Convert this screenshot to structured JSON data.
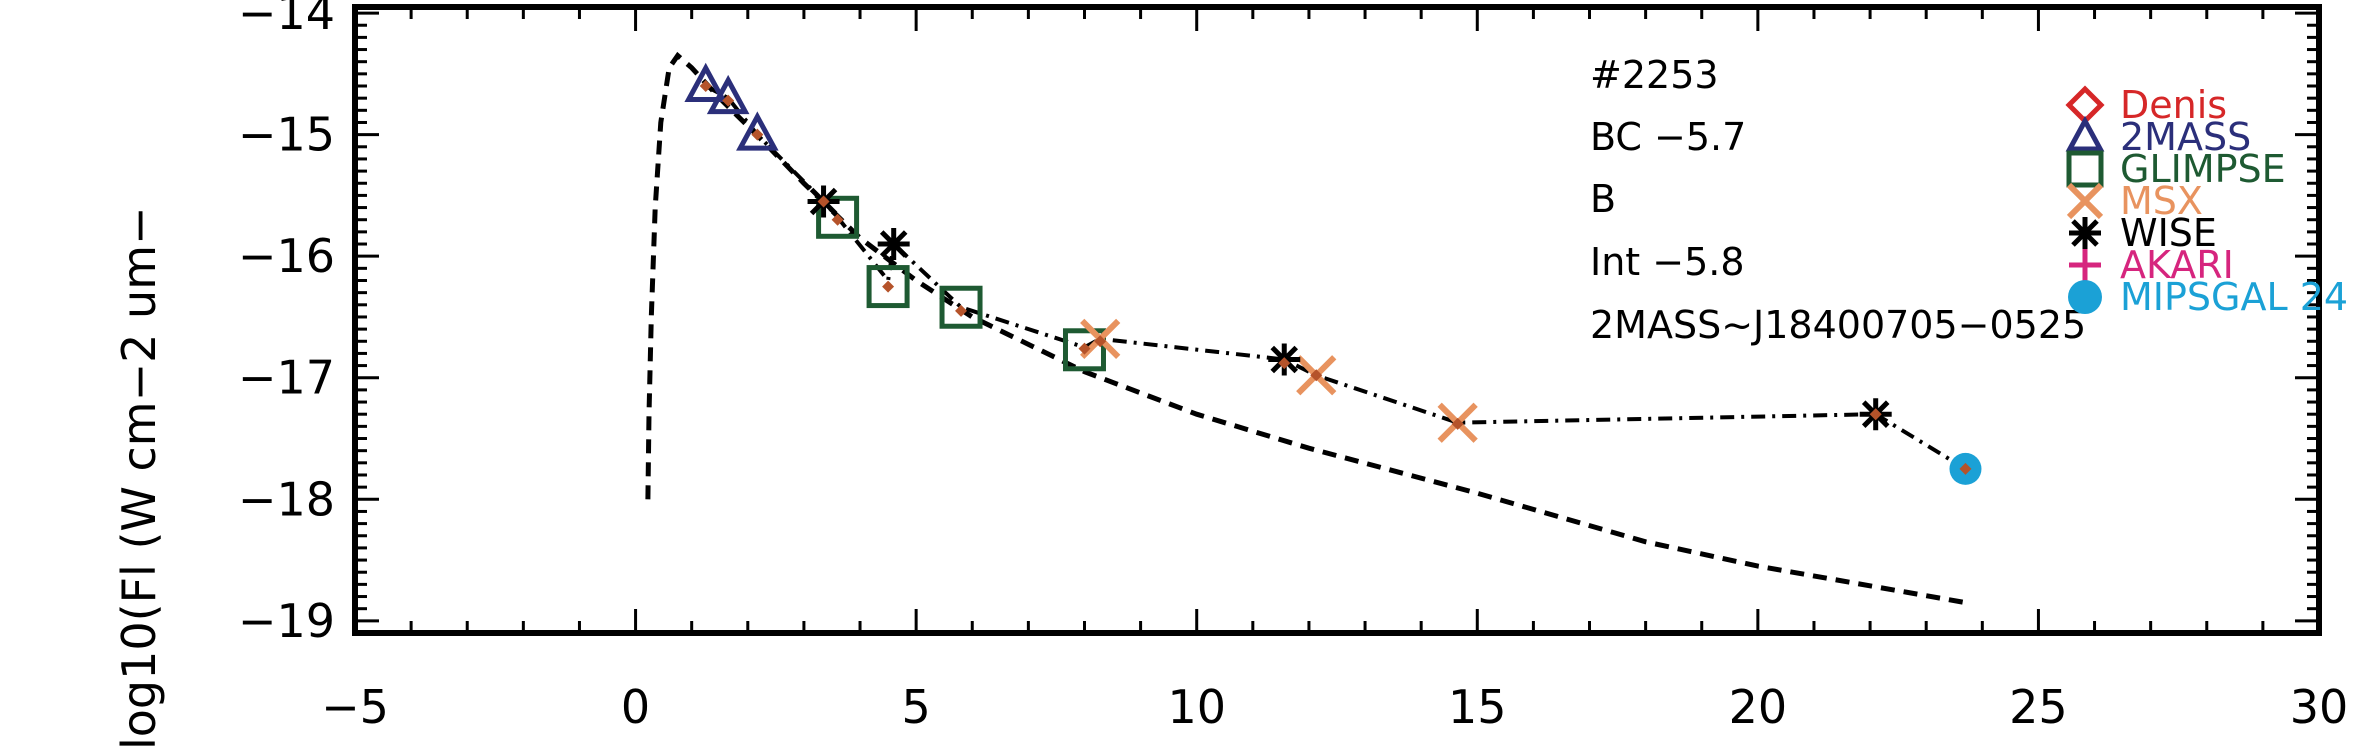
{
  "chart_data": {
    "type": "scatter",
    "title": "",
    "xlabel": "",
    "ylabel": "log10(Fl (W cm−2 um−",
    "xlim": [
      -5,
      30
    ],
    "ylim": [
      -19.1,
      -13.95
    ],
    "x_ticks": [
      -5,
      0,
      5,
      10,
      15,
      20,
      25,
      30
    ],
    "x_tick_labels": [
      "−5",
      "0",
      "5",
      "10",
      "15",
      "20",
      "25",
      "30"
    ],
    "y_ticks": [
      -14,
      -15,
      -16,
      -17,
      -18,
      -19
    ],
    "y_tick_labels": [
      "−14",
      "−15",
      "−16",
      "−17",
      "−18",
      "−19"
    ],
    "annotations": [
      "#2253",
      "BC  −5.7",
      "B",
      "Int  −5.8",
      "2MASS~J18400705−0525"
    ],
    "legend_position": "right",
    "legend": [
      {
        "name": "Denis",
        "marker": "diamond",
        "color": "#d62728"
      },
      {
        "name": "2MASS",
        "marker": "triangle",
        "color": "#2b2f7a"
      },
      {
        "name": "GLIMPSE",
        "marker": "square",
        "color": "#1e5a32"
      },
      {
        "name": "MSX",
        "marker": "x",
        "color": "#e8935f"
      },
      {
        "name": "WISE",
        "marker": "asterisk",
        "color": "#000000"
      },
      {
        "name": "AKARI",
        "marker": "plus",
        "color": "#d6257e"
      },
      {
        "name": "MIPSGAL 24",
        "marker": "circle",
        "color": "#1ba1d6"
      }
    ],
    "series": [
      {
        "survey": "2MASS",
        "marker": "triangle",
        "color": "#2b2f7a",
        "points": [
          [
            1.25,
            -14.6
          ],
          [
            1.65,
            -14.7
          ],
          [
            2.17,
            -15.0
          ]
        ]
      },
      {
        "survey": "GLIMPSE",
        "marker": "square",
        "color": "#1e5a32",
        "points": [
          [
            3.6,
            -15.68
          ],
          [
            4.5,
            -16.25
          ],
          [
            5.8,
            -16.42
          ],
          [
            8.0,
            -16.77
          ]
        ]
      },
      {
        "survey": "MSX",
        "marker": "x",
        "color": "#e8935f",
        "points": [
          [
            8.28,
            -16.68
          ],
          [
            12.13,
            -16.98
          ],
          [
            14.65,
            -17.37
          ]
        ]
      },
      {
        "survey": "WISE",
        "marker": "asterisk",
        "color": "#000000",
        "points": [
          [
            3.35,
            -15.55
          ],
          [
            4.6,
            -15.9
          ],
          [
            11.56,
            -16.85
          ],
          [
            22.1,
            -17.3
          ]
        ]
      },
      {
        "survey": "MIPSGAL 24",
        "marker": "circle",
        "color": "#1ba1d6",
        "points": [
          [
            23.7,
            -17.75
          ]
        ]
      }
    ],
    "model_points": {
      "marker": "diamond",
      "color": "#b5532a",
      "points": [
        [
          1.25,
          -14.6
        ],
        [
          1.65,
          -14.72
        ],
        [
          2.17,
          -15.0
        ],
        [
          3.35,
          -15.55
        ],
        [
          3.6,
          -15.7
        ],
        [
          4.5,
          -16.25
        ],
        [
          5.8,
          -16.45
        ],
        [
          8.0,
          -16.76
        ],
        [
          8.28,
          -16.7
        ],
        [
          11.56,
          -16.88
        ],
        [
          12.13,
          -16.98
        ],
        [
          14.65,
          -17.38
        ],
        [
          22.1,
          -17.3
        ],
        [
          23.7,
          -17.75
        ]
      ]
    },
    "sed_curve": {
      "style": "dash-dot",
      "points": [
        [
          1.25,
          -14.6
        ],
        [
          1.65,
          -14.7
        ],
        [
          2.17,
          -15.0
        ],
        [
          3.35,
          -15.55
        ],
        [
          3.6,
          -15.68
        ],
        [
          4.5,
          -16.2
        ],
        [
          4.6,
          -15.9
        ],
        [
          5.8,
          -16.42
        ],
        [
          8.0,
          -16.75
        ],
        [
          8.28,
          -16.68
        ],
        [
          11.56,
          -16.85
        ],
        [
          12.13,
          -16.98
        ],
        [
          14.65,
          -17.37
        ],
        [
          22.1,
          -17.3
        ],
        [
          23.7,
          -17.75
        ]
      ]
    },
    "model_curve": {
      "style": "dashed",
      "points": [
        [
          0.22,
          -18.0
        ],
        [
          0.24,
          -17.3
        ],
        [
          0.28,
          -16.5
        ],
        [
          0.35,
          -15.6
        ],
        [
          0.45,
          -14.9
        ],
        [
          0.6,
          -14.45
        ],
        [
          0.75,
          -14.35
        ],
        [
          1.0,
          -14.45
        ],
        [
          1.5,
          -14.7
        ],
        [
          2.2,
          -15.02
        ],
        [
          3.0,
          -15.4
        ],
        [
          4.0,
          -15.85
        ],
        [
          5.0,
          -16.2
        ],
        [
          6.0,
          -16.5
        ],
        [
          8.0,
          -16.95
        ],
        [
          10.0,
          -17.3
        ],
        [
          12.0,
          -17.58
        ],
        [
          15.0,
          -17.95
        ],
        [
          18.0,
          -18.35
        ],
        [
          20.0,
          -18.55
        ],
        [
          23.7,
          -18.85
        ]
      ]
    }
  }
}
